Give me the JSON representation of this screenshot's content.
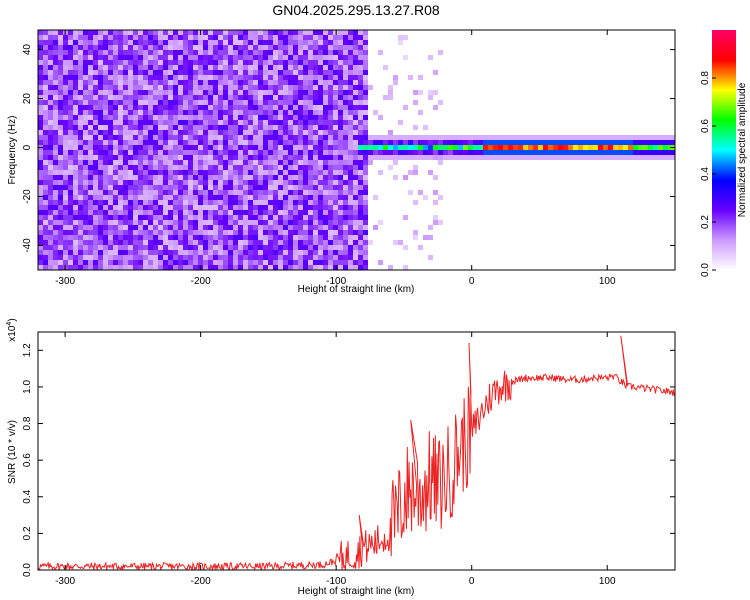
{
  "title": "GN04.2025.295.13.27.R08",
  "chart_data": [
    {
      "type": "heatmap",
      "xlabel": "Height of straight line (km)",
      "ylabel": "Frequency (Hz)",
      "xlim": [
        -320,
        150
      ],
      "ylim": [
        -50,
        48
      ],
      "xticks": [
        -300,
        -200,
        -100,
        0,
        100
      ],
      "yticks": [
        -40,
        -20,
        0,
        20,
        40
      ],
      "colorbar": {
        "label": "Normalized spectral amplitude",
        "range": [
          0.0,
          1.0
        ],
        "ticks": [
          0.0,
          0.2,
          0.4,
          0.6,
          0.8
        ],
        "colors": [
          "#ffffff",
          "#cc99ff",
          "#6600ff",
          "#0000ff",
          "#00ffff",
          "#00ff00",
          "#ffff00",
          "#ff0000",
          "#ff0066"
        ]
      },
      "features": {
        "noise_region_x": [
          -320,
          -75
        ],
        "signal_band_start_x": -85,
        "signal_band_center_hz": 0,
        "peak_region_x": [
          10,
          120
        ]
      }
    },
    {
      "type": "line",
      "xlabel": "Height of straight line (km)",
      "ylabel": "SNR (10 * v/v)",
      "yscale_label": "(x10^4)",
      "yscale_base": "x10",
      "yscale_exp": "4",
      "xlim": [
        -320,
        150
      ],
      "ylim": [
        0,
        1.3
      ],
      "xticks": [
        -300,
        -200,
        -100,
        0,
        100
      ],
      "yticks": [
        0.0,
        0.2,
        0.4,
        0.6,
        0.8,
        1.0,
        1.2
      ],
      "line_color": "#ee2222",
      "series": [
        {
          "x": [
            -320,
            -250,
            -200,
            -150,
            -110,
            -100,
            -90,
            -80,
            -70,
            -60,
            -55,
            -50,
            -45,
            -40,
            -35,
            -30,
            -25,
            -20,
            -15,
            -10,
            -5,
            0,
            5,
            10,
            15,
            20,
            30,
            40,
            50,
            60,
            70,
            80,
            90,
            100,
            105,
            110,
            115,
            120,
            130,
            140,
            150
          ],
          "values": [
            0.02,
            0.02,
            0.02,
            0.02,
            0.03,
            0.05,
            0.08,
            0.12,
            0.15,
            0.2,
            0.28,
            0.4,
            0.45,
            0.42,
            0.45,
            0.5,
            0.45,
            0.5,
            0.55,
            0.65,
            0.7,
            0.75,
            0.82,
            0.9,
            0.96,
            1.0,
            1.03,
            1.05,
            1.05,
            1.05,
            1.04,
            1.04,
            1.05,
            1.05,
            1.06,
            1.03,
            1.0,
            1.0,
            0.99,
            0.98,
            0.97
          ]
        }
      ],
      "spikes": [
        {
          "x": -2,
          "y": 1.24
        },
        {
          "x": 110,
          "y": 1.28
        },
        {
          "x": -83,
          "y": 0.3
        },
        {
          "x": -45,
          "y": 0.82
        }
      ]
    }
  ]
}
